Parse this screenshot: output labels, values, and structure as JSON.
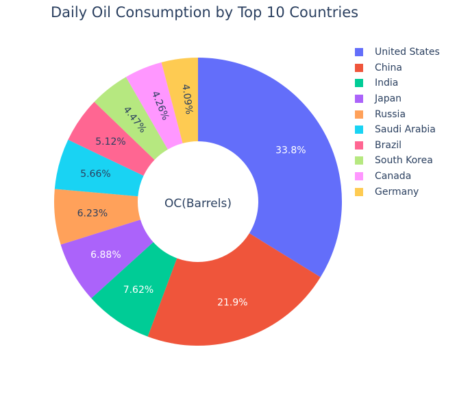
{
  "chart_data": {
    "type": "pie",
    "title": "Daily Oil Consumption by Top 10 Countries",
    "center_label": "OC(Barrels)",
    "categories": [
      "United States",
      "China",
      "India",
      "Japan",
      "Russia",
      "Saudi Arabia",
      "Brazil",
      "South Korea",
      "Canada",
      "Germany"
    ],
    "values": [
      33.8,
      21.9,
      7.62,
      6.88,
      6.23,
      5.66,
      5.12,
      4.47,
      4.26,
      4.09
    ],
    "slice_labels": [
      "33.8%",
      "21.9%",
      "7.62%",
      "6.88%",
      "6.23%",
      "5.66%",
      "5.12%",
      "4.47%",
      "4.26%",
      "4.09%"
    ],
    "colors": [
      "#636efa",
      "#EF553B",
      "#00cc96",
      "#ab63fa",
      "#FFA15A",
      "#19d3f3",
      "#FF6692",
      "#B6E880",
      "#FF97FF",
      "#FECB52"
    ],
    "hole": true,
    "legend_position": "right"
  }
}
